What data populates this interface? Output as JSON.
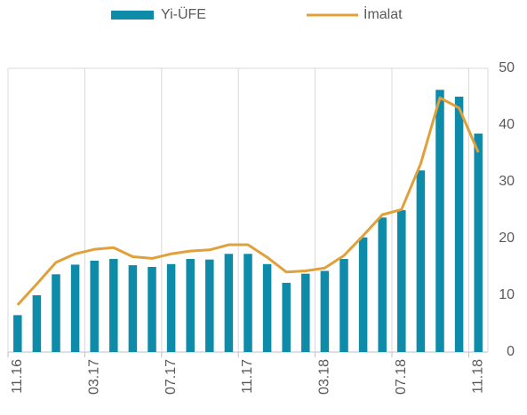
{
  "chart_data": {
    "type": "bar-line",
    "categories": [
      "11.16",
      null,
      null,
      null,
      "03.17",
      null,
      null,
      null,
      "07.17",
      null,
      null,
      null,
      "11.17",
      null,
      null,
      null,
      "03.18",
      null,
      null,
      null,
      "07.18",
      null,
      null,
      null,
      "11.18"
    ],
    "series": [
      {
        "name": "Yi-ÜFE",
        "type": "bar",
        "color": "#0e8ba8",
        "values": [
          6.5,
          10,
          13.7,
          15.4,
          16.1,
          16.4,
          15.3,
          15,
          15.5,
          16.4,
          16.3,
          17.3,
          17.3,
          15.5,
          12.2,
          13.8,
          14.3,
          16.4,
          20.2,
          23.7,
          25,
          32,
          46.2,
          45,
          38.5
        ]
      },
      {
        "name": "İmalat",
        "type": "line",
        "color": "#e0a03a",
        "values": [
          8.3,
          12,
          15.8,
          17.3,
          18.1,
          18.4,
          16.8,
          16.5,
          17.3,
          17.8,
          18,
          18.9,
          18.9,
          16.7,
          14.1,
          14.3,
          14.8,
          17,
          20.5,
          24.2,
          25.1,
          33.2,
          44.8,
          43,
          35.2
        ]
      }
    ],
    "ylim": [
      0,
      50
    ],
    "yticks": [
      0,
      10,
      20,
      30,
      40,
      50
    ],
    "grid": true
  }
}
